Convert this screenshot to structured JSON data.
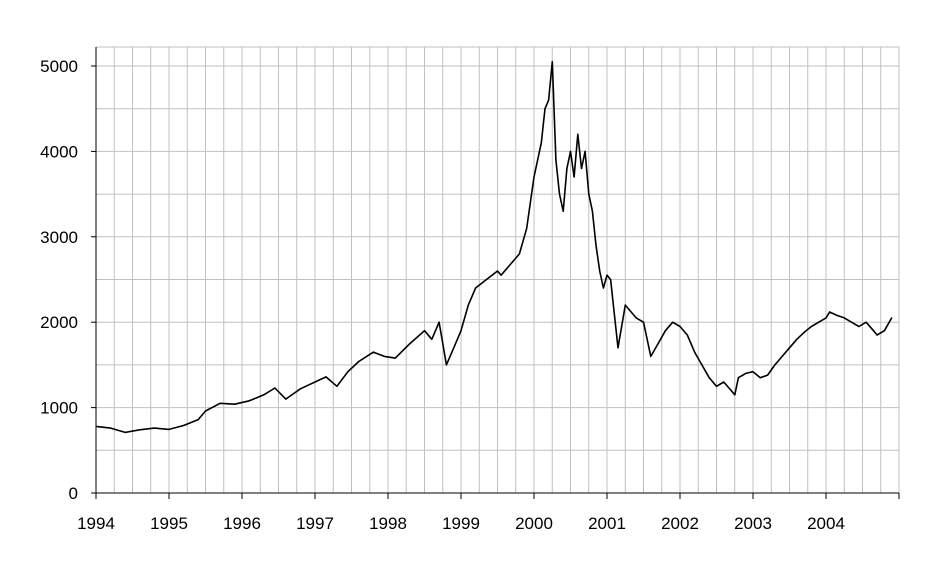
{
  "chart_data": {
    "type": "line",
    "title": "",
    "xlabel": "",
    "ylabel": "",
    "xlim": [
      1994,
      2005
    ],
    "ylim": [
      0,
      5000
    ],
    "grid": true,
    "legend": "none",
    "x_ticks": [
      "1994",
      "1995",
      "1996",
      "1997",
      "1998",
      "1999",
      "2000",
      "2001",
      "2002",
      "2003",
      "2004"
    ],
    "y_ticks": [
      "0",
      "1000",
      "2000",
      "3000",
      "4000",
      "5000"
    ],
    "line_color": "#000000",
    "grid_color": "#c0c0c0",
    "series": [
      {
        "x": [
          1994.0,
          1994.2,
          1994.4,
          1994.6,
          1994.8,
          1995.0,
          1995.2,
          1995.4,
          1995.5,
          1995.7,
          1995.9,
          1996.1,
          1996.3,
          1996.45,
          1996.6,
          1996.8,
          1997.0,
          1997.15,
          1997.3,
          1997.45,
          1997.6,
          1997.8,
          1997.95,
          1998.1,
          1998.3,
          1998.5,
          1998.6,
          1998.7,
          1998.75,
          1998.8,
          1998.95,
          1999.0,
          1999.1,
          1999.2,
          1999.35,
          1999.5,
          1999.55,
          1999.7,
          1999.8,
          1999.9,
          2000.0,
          2000.1,
          2000.15,
          2000.2,
          2000.25,
          2000.3,
          2000.35,
          2000.4,
          2000.45,
          2000.5,
          2000.55,
          2000.6,
          2000.65,
          2000.7,
          2000.75,
          2000.8,
          2000.85,
          2000.9,
          2000.95,
          2001.0,
          2001.05,
          2001.1,
          2001.15,
          2001.25,
          2001.3,
          2001.4,
          2001.5,
          2001.6,
          2001.7,
          2001.8,
          2001.9,
          2002.0,
          2002.1,
          2002.2,
          2002.3,
          2002.4,
          2002.5,
          2002.6,
          2002.7,
          2002.75,
          2002.8,
          2002.9,
          2003.0,
          2003.1,
          2003.2,
          2003.3,
          2003.4,
          2003.5,
          2003.6,
          2003.7,
          2003.8,
          2003.9,
          2004.0,
          2004.05,
          2004.15,
          2004.25,
          2004.35,
          2004.45,
          2004.55,
          2004.65,
          2004.7,
          2004.8,
          2004.9
        ],
        "y": [
          780,
          760,
          710,
          740,
          760,
          745,
          790,
          860,
          960,
          1050,
          1040,
          1080,
          1150,
          1230,
          1100,
          1220,
          1300,
          1360,
          1250,
          1420,
          1540,
          1650,
          1600,
          1580,
          1750,
          1900,
          1800,
          2000,
          1750,
          1500,
          1800,
          1900,
          2200,
          2400,
          2500,
          2600,
          2550,
          2700,
          2800,
          3100,
          3700,
          4100,
          4500,
          4600,
          5050,
          3900,
          3500,
          3300,
          3800,
          4000,
          3700,
          4200,
          3800,
          4000,
          3500,
          3300,
          2900,
          2600,
          2400,
          2550,
          2500,
          2100,
          1700,
          2200,
          2150,
          2050,
          2000,
          1600,
          1750,
          1900,
          2000,
          1950,
          1850,
          1650,
          1500,
          1350,
          1250,
          1300,
          1200,
          1150,
          1350,
          1400,
          1420,
          1350,
          1380,
          1500,
          1600,
          1700,
          1800,
          1880,
          1950,
          2000,
          2050,
          2120,
          2080,
          2050,
          2000,
          1950,
          2000,
          1900,
          1850,
          1900,
          2050
        ]
      }
    ]
  }
}
